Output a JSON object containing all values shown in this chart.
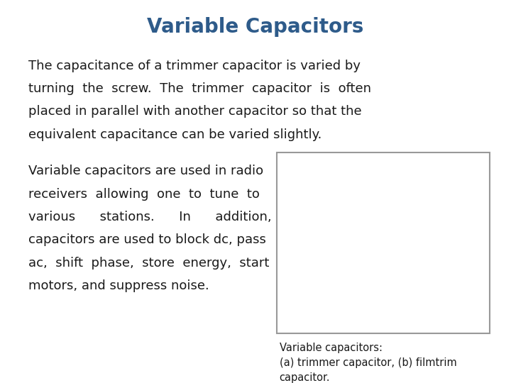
{
  "title": "Variable Capacitors",
  "title_color": "#2E5B8A",
  "title_fontsize": 20,
  "bg_color": "#ffffff",
  "para1_lines": [
    "The capacitance of a trimmer capacitor is varied by",
    "turning  the  screw.  The  trimmer  capacitor  is  often",
    "placed in parallel with another capacitor so that the",
    "equivalent capacitance can be varied slightly."
  ],
  "para2_lines": [
    "Variable capacitors are used in radio",
    "receivers  allowing  one  to  tune  to",
    "various      stations.      In      addition,",
    "capacitors are used to block dc, pass",
    "ac,  shift  phase,  store  energy,  start",
    "motors, and suppress noise."
  ],
  "caption_line1": "Variable capacitors:",
  "caption_line2": "(a) trimmer capacitor, (b) filmtrim",
  "caption_line3": "capacitor.",
  "text_fontsize": 13,
  "caption_fontsize": 10.5,
  "text_color": "#1a1a1a",
  "image_border_color": "#999999",
  "label_a_color": "#555555",
  "label_b_color": "#555555"
}
